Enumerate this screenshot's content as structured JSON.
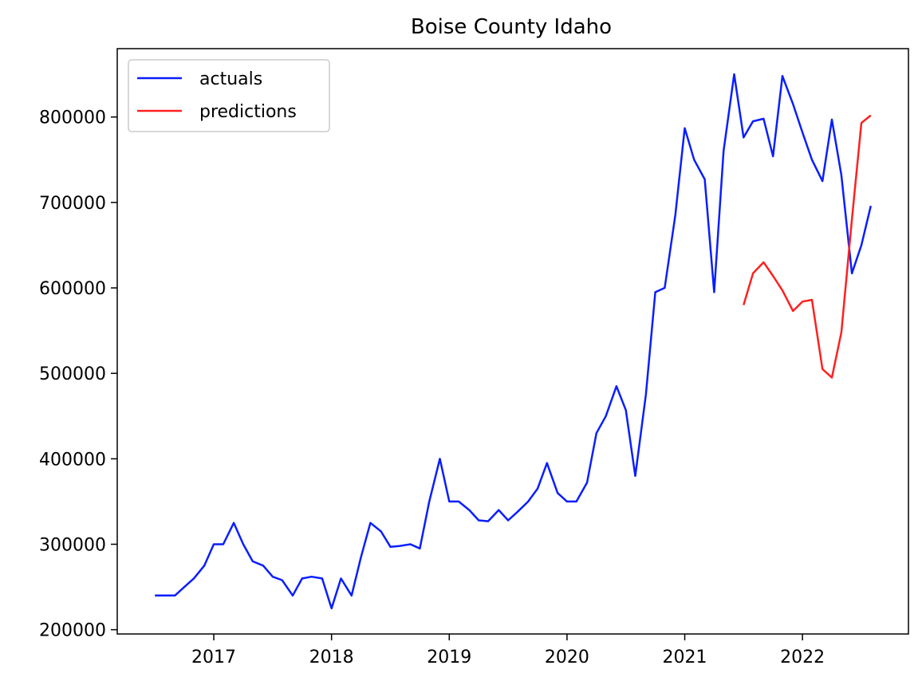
{
  "chart_data": {
    "type": "line",
    "title": "Boise County Idaho",
    "xlabel": "",
    "ylabel": "",
    "x_ticks": [
      {
        "label": "2017",
        "value": 2017.0
      },
      {
        "label": "2018",
        "value": 2018.0
      },
      {
        "label": "2019",
        "value": 2019.0
      },
      {
        "label": "2020",
        "value": 2020.0
      },
      {
        "label": "2021",
        "value": 2021.0
      },
      {
        "label": "2022",
        "value": 2022.0
      }
    ],
    "y_ticks": [
      {
        "label": "200000",
        "value": 200000
      },
      {
        "label": "300000",
        "value": 300000
      },
      {
        "label": "400000",
        "value": 400000
      },
      {
        "label": "500000",
        "value": 500000
      },
      {
        "label": "600000",
        "value": 600000
      },
      {
        "label": "700000",
        "value": 700000
      },
      {
        "label": "800000",
        "value": 800000
      }
    ],
    "xlim": [
      2016.18,
      2022.9
    ],
    "ylim": [
      195000,
      880000
    ],
    "grid": false,
    "legend_position": "top-left",
    "series": [
      {
        "name": "actuals",
        "color": "#0a1eff",
        "x": [
          2016.5,
          2016.58,
          2016.67,
          2016.75,
          2016.83,
          2016.92,
          2017.0,
          2017.08,
          2017.17,
          2017.25,
          2017.33,
          2017.42,
          2017.5,
          2017.58,
          2017.67,
          2017.75,
          2017.83,
          2017.92,
          2018.0,
          2018.08,
          2018.17,
          2018.25,
          2018.33,
          2018.42,
          2018.5,
          2018.58,
          2018.67,
          2018.75,
          2018.83,
          2018.92,
          2019.0,
          2019.08,
          2019.17,
          2019.25,
          2019.33,
          2019.42,
          2019.5,
          2019.58,
          2019.67,
          2019.75,
          2019.83,
          2019.92,
          2020.0,
          2020.08,
          2020.17,
          2020.25,
          2020.33,
          2020.42,
          2020.5,
          2020.58,
          2020.67,
          2020.75,
          2020.83,
          2020.92,
          2021.0,
          2021.08,
          2021.17,
          2021.25,
          2021.33,
          2021.42,
          2021.5,
          2021.58,
          2021.67,
          2021.75,
          2021.83,
          2021.92,
          2022.0,
          2022.08,
          2022.17,
          2022.25,
          2022.33,
          2022.42,
          2022.5,
          2022.58
        ],
        "y": [
          240000,
          240000,
          240000,
          250000,
          260000,
          275000,
          300000,
          300000,
          325000,
          300000,
          280000,
          275000,
          262000,
          258000,
          240000,
          260000,
          262000,
          260000,
          225000,
          260000,
          240000,
          285000,
          325000,
          315000,
          297000,
          298000,
          300000,
          295000,
          350000,
          400000,
          350000,
          350000,
          340000,
          328000,
          327000,
          340000,
          328000,
          338000,
          350000,
          365000,
          395000,
          360000,
          350000,
          350000,
          372000,
          430000,
          450000,
          485000,
          457000,
          380000,
          475000,
          595000,
          600000,
          685000,
          787000,
          750000,
          727000,
          595000,
          760000,
          850000,
          776000,
          795000,
          798000,
          754000,
          848000,
          815000,
          782000,
          750000,
          725000,
          797000,
          732000,
          617000,
          650000,
          696000
        ]
      },
      {
        "name": "predictions",
        "color": "#ff2020",
        "x": [
          2021.5,
          2021.58,
          2021.67,
          2021.75,
          2021.83,
          2021.92,
          2022.0,
          2022.08,
          2022.17,
          2022.25,
          2022.33,
          2022.42,
          2022.5,
          2022.58
        ],
        "y": [
          580000,
          617000,
          630000,
          614000,
          597000,
          573000,
          584000,
          586000,
          505000,
          495000,
          548000,
          680000,
          793000,
          802000
        ]
      }
    ]
  }
}
